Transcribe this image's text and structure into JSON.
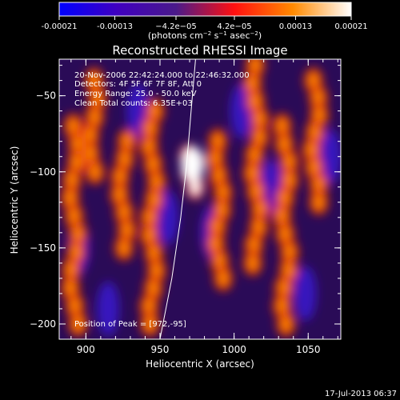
{
  "colorbar": {
    "ticks": [
      "-0.00021",
      "-0.00013",
      "−4.2e−05",
      "4.2e−05",
      "0.00013",
      "0.00021"
    ],
    "tick_values": [
      -0.00021,
      -0.00013,
      -4.2e-05,
      4.2e-05,
      0.00013,
      0.00021
    ],
    "range": [
      -0.00021,
      0.00021
    ],
    "units_main": "(photons cm",
    "units_e1": "−2",
    "units_mid": " s",
    "units_e2": "−1",
    "units_mid2": " asec",
    "units_e3": "−2",
    "units_end": ")",
    "stops": [
      "#0000ff",
      "#4000c0",
      "#4a1a8a",
      "#ff1010",
      "#ff8a00",
      "#ffffff"
    ]
  },
  "info": {
    "line1": "20-Nov-2006 22:42:24.000 to 22:46:32.000",
    "line2": "Detectors: 4F 5F 6F 7F 8F, Att 0",
    "line3": "Energy Range: 25.0 - 50.0 keV",
    "line4": "Clean    Total counts: 6.35E+03",
    "peak": "Position of Peak = [972,-95]"
  },
  "footer": {
    "date": "17-Jul-2013 06:37"
  },
  "chart_data": {
    "type": "heatmap",
    "title": "Reconstructed RHESSI Image",
    "xlabel": "Heliocentric X (arcsec)",
    "ylabel": "Heliocentric Y (arcsec)",
    "xlim": [
      882,
      1072
    ],
    "ylim": [
      -210,
      -26
    ],
    "x_ticks": [
      900,
      950,
      1000,
      1050
    ],
    "y_ticks": [
      -50,
      -100,
      -150,
      -200
    ],
    "x_tick_labels": [
      "900",
      "950",
      "1000",
      "1050"
    ],
    "y_tick_labels": [
      "−50",
      "−100",
      "−150",
      "−200"
    ],
    "peak": {
      "x": 972,
      "y": -95
    },
    "limb_curve": [
      [
        950,
        -210
      ],
      [
        958,
        -170
      ],
      [
        964,
        -130
      ],
      [
        968,
        -95
      ],
      [
        971,
        -60
      ],
      [
        974,
        -26
      ]
    ],
    "bright_bands": [
      {
        "x": 892,
        "y": [
          -70,
          -200
        ],
        "level": 0.00012
      },
      {
        "x": 905,
        "y": [
          -40,
          -100
        ],
        "level": 0.00012
      },
      {
        "x": 925,
        "y": [
          -80,
          -150
        ],
        "level": 0.00016
      },
      {
        "x": 945,
        "y": [
          -60,
          -200
        ],
        "level": 0.00013
      },
      {
        "x": 972,
        "y": [
          -90,
          -110
        ],
        "level": 0.00021
      },
      {
        "x": 990,
        "y": [
          -80,
          -170
        ],
        "level": 0.00015
      },
      {
        "x": 1015,
        "y": [
          -30,
          -160
        ],
        "level": 0.00014
      },
      {
        "x": 1035,
        "y": [
          -70,
          -200
        ],
        "level": 0.00012
      },
      {
        "x": 1055,
        "y": [
          -40,
          -120
        ],
        "level": 0.00016
      }
    ]
  }
}
